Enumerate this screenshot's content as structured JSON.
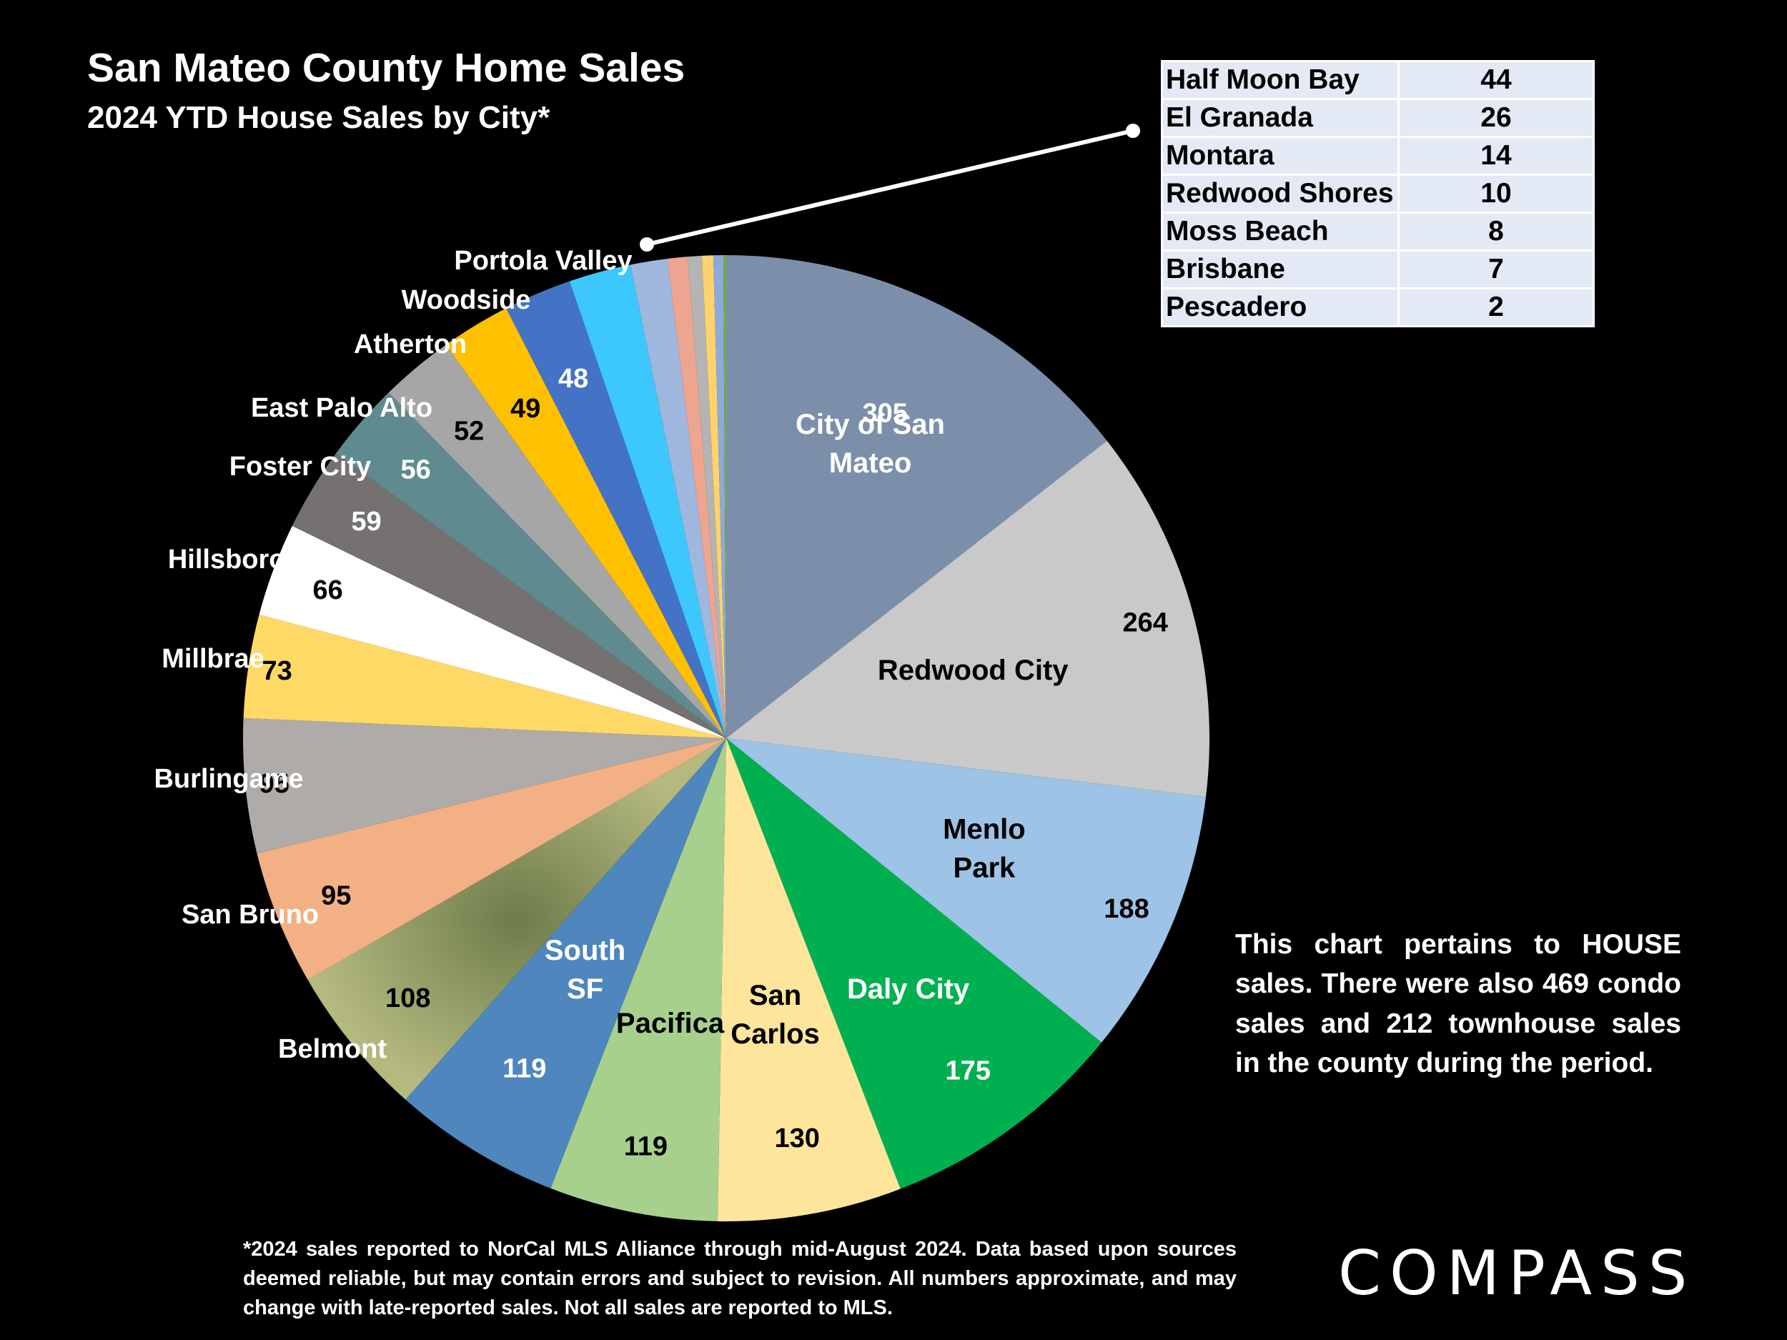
{
  "header": {
    "title": "San Mateo County Home Sales",
    "subtitle": "2024 YTD House Sales by City*"
  },
  "chart_data": {
    "type": "pie",
    "title": "San Mateo County Home Sales",
    "subtitle": "2024 YTD House Sales by City*",
    "slices": [
      {
        "label": "City of San Mateo",
        "value": 305,
        "color": "#7b8fab",
        "label_color": "#ffffff",
        "value_color": "#ffffff"
      },
      {
        "label": "Redwood City",
        "value": 264,
        "color": "#c9c9c9",
        "label_color": "#000000",
        "value_color": "#000000"
      },
      {
        "label": "Menlo Park",
        "value": 188,
        "color": "#9dc3e6",
        "label_color": "#000000",
        "value_color": "#000000"
      },
      {
        "label": "Daly City",
        "value": 175,
        "color": "#00b050",
        "label_color": "#ffffff",
        "value_color": "#ffffff"
      },
      {
        "label": "San Carlos",
        "value": 130,
        "color": "#fde59c",
        "label_color": "#000000",
        "value_color": "#000000"
      },
      {
        "label": "Pacifica",
        "value": 119,
        "color": "#a8d08d",
        "label_color": "#000000",
        "value_color": "#000000"
      },
      {
        "label": "South SF",
        "value": 119,
        "color": "#4e86bd",
        "label_color": "#ffffff",
        "value_color": "#ffffff"
      },
      {
        "label": "Belmont",
        "value": 108,
        "color": "#a5ab73",
        "label_color": "#ffffff",
        "value_color": "#000000"
      },
      {
        "label": "San Bruno",
        "value": 95,
        "color": "#f2b084",
        "label_color": "#ffffff",
        "value_color": "#000000"
      },
      {
        "label": "Burlingame",
        "value": 95,
        "color": "#afaba8",
        "label_color": "#ffffff",
        "value_color": "#000000"
      },
      {
        "label": "Millbrae",
        "value": 73,
        "color": "#ffd966",
        "label_color": "#ffffff",
        "value_color": "#000000"
      },
      {
        "label": "Hillsborough",
        "value": 66,
        "color": "#ffffff",
        "label_color": "#ffffff",
        "value_color": "#000000"
      },
      {
        "label": "Foster City",
        "value": 59,
        "color": "#767171",
        "label_color": "#ffffff",
        "value_color": "#ffffff"
      },
      {
        "label": "East Palo Alto",
        "value": 56,
        "color": "#5f8a8f",
        "label_color": "#ffffff",
        "value_color": "#ffffff"
      },
      {
        "label": "Atherton",
        "value": 52,
        "color": "#a6a6a6",
        "label_color": "#ffffff",
        "value_color": "#000000"
      },
      {
        "label": "Woodside",
        "value": 49,
        "color": "#ffc000",
        "label_color": "#ffffff",
        "value_color": "#000000"
      },
      {
        "label": "Portola Valley",
        "value": 48,
        "color": "#4472c4",
        "label_color": "#ffffff",
        "value_color": "#ffffff"
      },
      {
        "label": "Half Moon Bay",
        "value": 44,
        "color": "#3cc8fc",
        "label_color": "#000000",
        "value_color": "#000000"
      },
      {
        "label": "El Granada",
        "value": 26,
        "color": "#9fb7dc",
        "label_color": "#000000",
        "value_color": "#000000"
      },
      {
        "label": "Montara",
        "value": 14,
        "color": "#eea58f",
        "label_color": "#000000",
        "value_color": "#000000"
      },
      {
        "label": "Redwood Shores",
        "value": 10,
        "color": "#b4b4b4",
        "label_color": "#000000",
        "value_color": "#000000"
      },
      {
        "label": "Moss Beach",
        "value": 8,
        "color": "#ffd26b",
        "label_color": "#000000",
        "value_color": "#000000"
      },
      {
        "label": "Brisbane",
        "value": 7,
        "color": "#8eaadb",
        "label_color": "#000000",
        "value_color": "#000000"
      },
      {
        "label": "Pescadero",
        "value": 2,
        "color": "#70ad47",
        "label_color": "#000000",
        "value_color": "#000000"
      }
    ]
  },
  "small_cities_table": [
    {
      "city": "Half Moon Bay",
      "count": "44"
    },
    {
      "city": "El Granada",
      "count": "26"
    },
    {
      "city": "Montara",
      "count": "14"
    },
    {
      "city": "Redwood Shores",
      "count": "10"
    },
    {
      "city": "Moss Beach",
      "count": "8"
    },
    {
      "city": "Brisbane",
      "count": "7"
    },
    {
      "city": "Pescadero",
      "count": "2"
    }
  ],
  "note": "This chart pertains to HOUSE sales. There were also 469 condo sales and 212 townhouse sales in the county during the period.",
  "footnote": "*2024 sales reported to NorCal MLS Alliance through mid-August 2024. Data based upon sources deemed reliable, but may contain errors and subject to revision. All numbers approximate, and may change with late-reported sales. Not all sales are reported to MLS.",
  "logo": "COMPASS"
}
